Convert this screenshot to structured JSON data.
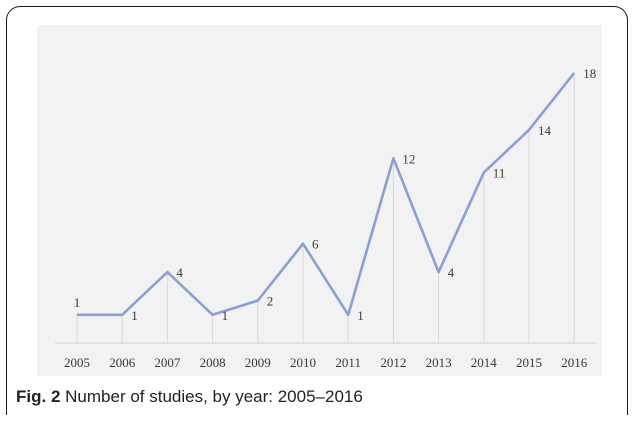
{
  "caption": {
    "label": "Fig. 2",
    "text": "Number of studies, by year: 2005–2016"
  },
  "chart_data": {
    "type": "line",
    "title": "",
    "xlabel": "",
    "ylabel": "",
    "x": [
      "2005",
      "2006",
      "2007",
      "2008",
      "2009",
      "2010",
      "2011",
      "2012",
      "2013",
      "2014",
      "2015",
      "2016"
    ],
    "series": [
      {
        "values": [
          1,
          1,
          4,
          1,
          2,
          6,
          1,
          12,
          4,
          11,
          14,
          18
        ]
      }
    ],
    "ylim": [
      0,
      18
    ],
    "grid": "vertical drop lines",
    "legend": "none",
    "colors": {
      "line": "#8a9fd6",
      "plot_bg": "#f2f2f2",
      "drop_line": "#d9d9d9"
    }
  }
}
